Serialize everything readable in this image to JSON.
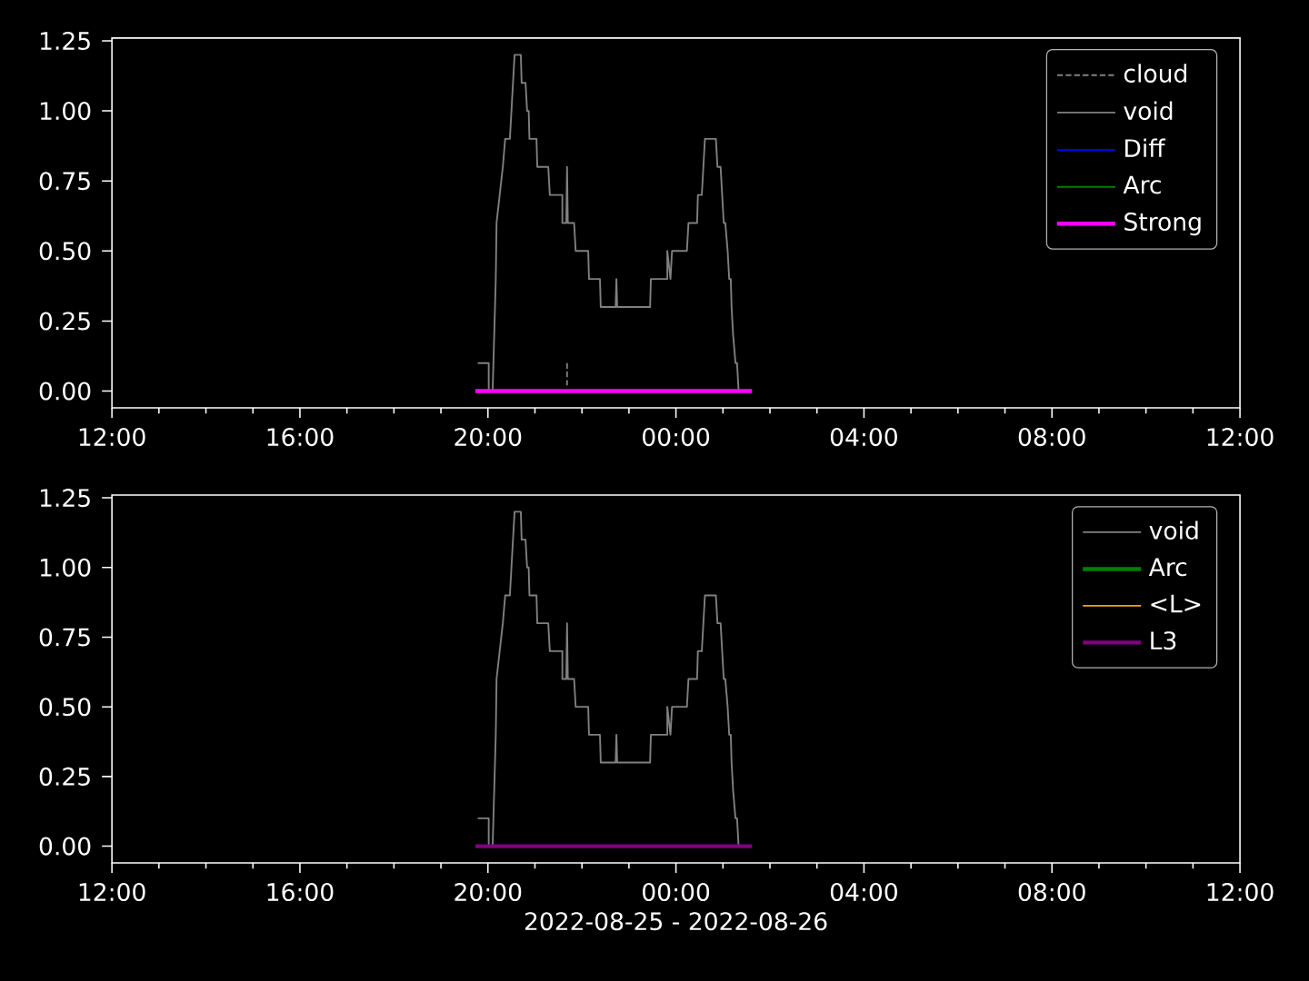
{
  "chart_data": [
    {
      "type": "line",
      "xlim": [
        "2022-08-25T12:00",
        "2022-08-26T12:00"
      ],
      "ylim": [
        -0.06,
        1.26
      ],
      "xticks": [
        {
          "value": "2022-08-25T12:00",
          "label": "12:00"
        },
        {
          "value": "2022-08-25T16:00",
          "label": "16:00"
        },
        {
          "value": "2022-08-25T20:00",
          "label": "20:00"
        },
        {
          "value": "2022-08-26T00:00",
          "label": "00:00"
        },
        {
          "value": "2022-08-26T04:00",
          "label": "04:00"
        },
        {
          "value": "2022-08-26T08:00",
          "label": "08:00"
        },
        {
          "value": "2022-08-26T12:00",
          "label": "12:00"
        }
      ],
      "yticks": [
        {
          "value": 0,
          "label": "0.00"
        },
        {
          "value": 0.25,
          "label": "0.25"
        },
        {
          "value": 0.5,
          "label": "0.50"
        },
        {
          "value": 0.75,
          "label": "0.75"
        },
        {
          "value": 1,
          "label": "1.00"
        },
        {
          "value": 1.25,
          "label": "1.25"
        }
      ],
      "legend": "top right",
      "series": [
        {
          "name": "cloud",
          "color": "#808080",
          "line_style": "dashed",
          "x": [
            "2022-08-25T21:41",
            "2022-08-25T21:41"
          ],
          "values": [
            0.1,
            0.02
          ]
        },
        {
          "name": "void",
          "color": "#808080",
          "line_style": "solid",
          "x": [
            "2022-08-25T19:47",
            "2022-08-25T20:01",
            "2022-08-25T20:01",
            "2022-08-25T20:06",
            "2022-08-25T20:10",
            "2022-08-25T20:11",
            "2022-08-25T20:15",
            "2022-08-25T20:19",
            "2022-08-25T20:22",
            "2022-08-25T20:28",
            "2022-08-25T20:30",
            "2022-08-25T20:32",
            "2022-08-25T20:34",
            "2022-08-25T20:42",
            "2022-08-25T20:43",
            "2022-08-25T20:48",
            "2022-08-25T20:50",
            "2022-08-25T20:52",
            "2022-08-25T20:53",
            "2022-08-25T21:02",
            "2022-08-25T21:03",
            "2022-08-25T21:17",
            "2022-08-25T21:19",
            "2022-08-25T21:35",
            "2022-08-25T21:35",
            "2022-08-25T21:40",
            "2022-08-25T21:41",
            "2022-08-25T21:42",
            "2022-08-25T21:50",
            "2022-08-25T21:52",
            "2022-08-25T22:08",
            "2022-08-25T22:09",
            "2022-08-25T22:23",
            "2022-08-25T22:24",
            "2022-08-25T22:43",
            "2022-08-25T22:44",
            "2022-08-25T22:45",
            "2022-08-25T23:27",
            "2022-08-25T23:28",
            "2022-08-25T23:49",
            "2022-08-25T23:49",
            "2022-08-25T23:53",
            "2022-08-25T23:55",
            "2022-08-26T00:14",
            "2022-08-26T00:16",
            "2022-08-26T00:27",
            "2022-08-26T00:28",
            "2022-08-26T00:33",
            "2022-08-26T00:35",
            "2022-08-26T00:37",
            "2022-08-26T00:51",
            "2022-08-26T00:53",
            "2022-08-26T00:57",
            "2022-08-26T00:59",
            "2022-08-26T01:01",
            "2022-08-26T01:03",
            "2022-08-26T01:06",
            "2022-08-26T01:08",
            "2022-08-26T01:10",
            "2022-08-26T01:11",
            "2022-08-26T01:13",
            "2022-08-26T01:16",
            "2022-08-26T01:18",
            "2022-08-26T01:20"
          ],
          "values": [
            0.1,
            0.1,
            0,
            0,
            0.4,
            0.6,
            0.7,
            0.8,
            0.9,
            0.9,
            1.0,
            1.1,
            1.2,
            1.2,
            1.1,
            1.1,
            1.0,
            1.0,
            0.9,
            0.9,
            0.8,
            0.8,
            0.7,
            0.7,
            0.6,
            0.6,
            0.8,
            0.6,
            0.6,
            0.5,
            0.5,
            0.4,
            0.4,
            0.3,
            0.3,
            0.4,
            0.3,
            0.3,
            0.4,
            0.4,
            0.5,
            0.4,
            0.5,
            0.5,
            0.6,
            0.6,
            0.7,
            0.7,
            0.8,
            0.9,
            0.9,
            0.8,
            0.8,
            0.7,
            0.6,
            0.6,
            0.5,
            0.4,
            0.4,
            0.3,
            0.2,
            0.1,
            0.1,
            0
          ]
        },
        {
          "name": "Diff",
          "color": "#0000ff",
          "line_style": "solid"
        },
        {
          "name": "Arc",
          "color": "#008000",
          "line_style": "solid"
        },
        {
          "name": "Strong",
          "color": "#ff00ff",
          "line_style": "solid",
          "x": [
            "2022-08-25T19:44",
            "2022-08-26T01:37"
          ],
          "values": [
            0,
            0
          ]
        }
      ]
    },
    {
      "type": "line",
      "xlim": [
        "2022-08-25T12:00",
        "2022-08-26T12:00"
      ],
      "ylim": [
        -0.06,
        1.26
      ],
      "xlabel": "2022-08-25 - 2022-08-26",
      "xticks": [
        {
          "value": "2022-08-25T12:00",
          "label": "12:00"
        },
        {
          "value": "2022-08-25T16:00",
          "label": "16:00"
        },
        {
          "value": "2022-08-25T20:00",
          "label": "20:00"
        },
        {
          "value": "2022-08-26T00:00",
          "label": "00:00"
        },
        {
          "value": "2022-08-26T04:00",
          "label": "04:00"
        },
        {
          "value": "2022-08-26T08:00",
          "label": "08:00"
        },
        {
          "value": "2022-08-26T12:00",
          "label": "12:00"
        }
      ],
      "yticks": [
        {
          "value": 0,
          "label": "0.00"
        },
        {
          "value": 0.25,
          "label": "0.25"
        },
        {
          "value": 0.5,
          "label": "0.50"
        },
        {
          "value": 0.75,
          "label": "0.75"
        },
        {
          "value": 1,
          "label": "1.00"
        },
        {
          "value": 1.25,
          "label": "1.25"
        }
      ],
      "legend": "top right",
      "series": [
        {
          "name": "void",
          "color": "#808080",
          "line_style": "solid",
          "x": [
            "2022-08-25T19:47",
            "2022-08-25T20:01",
            "2022-08-25T20:01",
            "2022-08-25T20:06",
            "2022-08-25T20:10",
            "2022-08-25T20:11",
            "2022-08-25T20:15",
            "2022-08-25T20:19",
            "2022-08-25T20:22",
            "2022-08-25T20:28",
            "2022-08-25T20:30",
            "2022-08-25T20:32",
            "2022-08-25T20:34",
            "2022-08-25T20:42",
            "2022-08-25T20:43",
            "2022-08-25T20:48",
            "2022-08-25T20:50",
            "2022-08-25T20:52",
            "2022-08-25T20:53",
            "2022-08-25T21:02",
            "2022-08-25T21:03",
            "2022-08-25T21:17",
            "2022-08-25T21:19",
            "2022-08-25T21:35",
            "2022-08-25T21:35",
            "2022-08-25T21:40",
            "2022-08-25T21:41",
            "2022-08-25T21:42",
            "2022-08-25T21:50",
            "2022-08-25T21:52",
            "2022-08-25T22:08",
            "2022-08-25T22:09",
            "2022-08-25T22:23",
            "2022-08-25T22:24",
            "2022-08-25T22:43",
            "2022-08-25T22:44",
            "2022-08-25T22:45",
            "2022-08-25T23:27",
            "2022-08-25T23:28",
            "2022-08-25T23:49",
            "2022-08-25T23:49",
            "2022-08-25T23:53",
            "2022-08-25T23:55",
            "2022-08-26T00:14",
            "2022-08-26T00:16",
            "2022-08-26T00:27",
            "2022-08-26T00:28",
            "2022-08-26T00:33",
            "2022-08-26T00:35",
            "2022-08-26T00:37",
            "2022-08-26T00:51",
            "2022-08-26T00:53",
            "2022-08-26T00:57",
            "2022-08-26T00:59",
            "2022-08-26T01:01",
            "2022-08-26T01:03",
            "2022-08-26T01:06",
            "2022-08-26T01:08",
            "2022-08-26T01:10",
            "2022-08-26T01:11",
            "2022-08-26T01:13",
            "2022-08-26T01:16",
            "2022-08-26T01:18",
            "2022-08-26T01:20"
          ],
          "values": [
            0.1,
            0.1,
            0,
            0,
            0.4,
            0.6,
            0.7,
            0.8,
            0.9,
            0.9,
            1.0,
            1.1,
            1.2,
            1.2,
            1.1,
            1.1,
            1.0,
            1.0,
            0.9,
            0.9,
            0.8,
            0.8,
            0.7,
            0.7,
            0.6,
            0.6,
            0.8,
            0.6,
            0.6,
            0.5,
            0.5,
            0.4,
            0.4,
            0.3,
            0.3,
            0.4,
            0.3,
            0.3,
            0.4,
            0.4,
            0.5,
            0.4,
            0.5,
            0.5,
            0.6,
            0.6,
            0.7,
            0.7,
            0.8,
            0.9,
            0.9,
            0.8,
            0.8,
            0.7,
            0.6,
            0.6,
            0.5,
            0.4,
            0.4,
            0.3,
            0.2,
            0.1,
            0.1,
            0
          ]
        },
        {
          "name": "Arc",
          "color": "#008000",
          "line_style": "solid"
        },
        {
          "name": "<L>",
          "color": "#ffa500",
          "line_style": "solid"
        },
        {
          "name": "L3",
          "color": "#800080",
          "line_style": "solid",
          "x": [
            "2022-08-25T19:44",
            "2022-08-26T01:37"
          ],
          "values": [
            0,
            0
          ]
        }
      ]
    }
  ]
}
